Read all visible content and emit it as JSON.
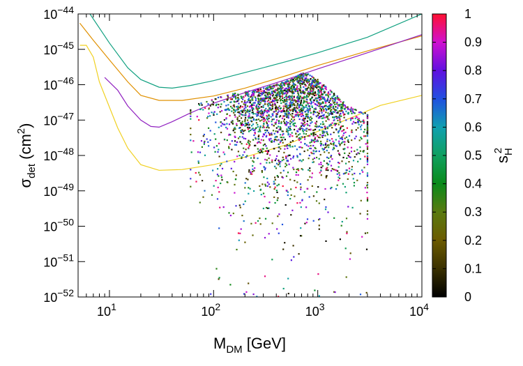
{
  "chart_data": {
    "type": "scatter",
    "title": "",
    "xlabel": {
      "base": "M",
      "sub": "DM",
      "rest": " [GeV]"
    },
    "ylabel": {
      "sym": "σ",
      "sub": "det",
      "pre": " (cm",
      "sup": "2",
      "post": ")"
    },
    "x_scale": "log",
    "y_scale": "log",
    "xlim": [
      5,
      10000
    ],
    "ylim": [
      1e-52,
      1e-44
    ],
    "x_ticks": [
      {
        "value": 10,
        "base": "10",
        "exp": "1"
      },
      {
        "value": 100,
        "base": "10",
        "exp": "2"
      },
      {
        "value": 1000,
        "base": "10",
        "exp": "3"
      },
      {
        "value": 10000,
        "base": "10",
        "exp": "4"
      }
    ],
    "y_ticks": [
      {
        "value": 1e-44,
        "base": "10",
        "exp": "−44"
      },
      {
        "value": 1e-45,
        "base": "10",
        "exp": "−45"
      },
      {
        "value": 1e-46,
        "base": "10",
        "exp": "−46"
      },
      {
        "value": 1e-47,
        "base": "10",
        "exp": "−47"
      },
      {
        "value": 1e-48,
        "base": "10",
        "exp": "−48"
      },
      {
        "value": 1e-49,
        "base": "10",
        "exp": "−49"
      },
      {
        "value": 1e-50,
        "base": "10",
        "exp": "−50"
      },
      {
        "value": 1e-51,
        "base": "10",
        "exp": "−51"
      },
      {
        "value": 1e-52,
        "base": "10",
        "exp": "−52"
      }
    ],
    "colorbar": {
      "label": {
        "base": "s",
        "sub": "H",
        "sup": "2"
      },
      "range": [
        0,
        1
      ],
      "ticks": [
        "0",
        "0.1",
        "0.2",
        "0.3",
        "0.4",
        "0.5",
        "0.6",
        "0.7",
        "0.8",
        "0.9",
        "1"
      ],
      "palette": [
        "#000000",
        "#3a3000",
        "#6b5a00",
        "#5a7a10",
        "#0a8a1a",
        "#10a060",
        "#10a0b0",
        "#2050e0",
        "#6010e0",
        "#d010d0",
        "#ff1030"
      ]
    },
    "curves": [
      {
        "name": "limit-teal",
        "color": "#10a080",
        "points": [
          [
            6.5,
            1e-44
          ],
          [
            10,
            1.5e-45
          ],
          [
            15,
            3e-46
          ],
          [
            20,
            1.4e-46
          ],
          [
            30,
            8.5e-47
          ],
          [
            40,
            8e-47
          ],
          [
            60,
            9.5e-47
          ],
          [
            100,
            1.3e-46
          ],
          [
            200,
            2.2e-46
          ],
          [
            500,
            4.5e-46
          ],
          [
            1000,
            8e-46
          ],
          [
            3000,
            2.2e-45
          ],
          [
            10000,
            1e-44
          ]
        ]
      },
      {
        "name": "limit-orange",
        "color": "#e09000",
        "points": [
          [
            5.2,
            5.5e-45
          ],
          [
            7,
            1.8e-45
          ],
          [
            10,
            5e-46
          ],
          [
            15,
            1.2e-46
          ],
          [
            20,
            5e-47
          ],
          [
            30,
            3.6e-47
          ],
          [
            50,
            3.6e-47
          ],
          [
            100,
            4.8e-47
          ],
          [
            200,
            8e-47
          ],
          [
            500,
            1.8e-46
          ],
          [
            1000,
            3.5e-46
          ],
          [
            3000,
            9e-46
          ],
          [
            10000,
            2.4e-45
          ]
        ]
      },
      {
        "name": "limit-purple",
        "color": "#9020c0",
        "points": [
          [
            9,
            1.6e-46
          ],
          [
            12,
            7e-47
          ],
          [
            15,
            2.5e-47
          ],
          [
            20,
            1e-47
          ],
          [
            25,
            6.6e-48
          ],
          [
            30,
            6.3e-48
          ],
          [
            40,
            9e-48
          ],
          [
            60,
            1.6e-47
          ],
          [
            100,
            3e-47
          ],
          [
            200,
            6e-47
          ],
          [
            500,
            1.4e-46
          ],
          [
            1000,
            2.8e-46
          ],
          [
            3000,
            8e-46
          ],
          [
            10000,
            2.6e-45
          ]
        ]
      },
      {
        "name": "limit-yellow",
        "color": "#f0d020",
        "points": [
          [
            5.2,
            1.3e-45
          ],
          [
            6,
            1.3e-45
          ],
          [
            7,
            6e-46
          ],
          [
            8,
            1.2e-46
          ],
          [
            10,
            2.3e-47
          ],
          [
            12,
            6e-48
          ],
          [
            15,
            1.6e-48
          ],
          [
            20,
            5.5e-49
          ],
          [
            30,
            3.8e-49
          ],
          [
            50,
            4e-49
          ],
          [
            100,
            5.5e-49
          ],
          [
            200,
            9e-49
          ],
          [
            500,
            2e-48
          ],
          [
            1000,
            4.8e-48
          ],
          [
            2000,
            1.1e-47
          ],
          [
            4000,
            2.6e-47
          ],
          [
            10000,
            5e-47
          ]
        ]
      }
    ],
    "scatter": {
      "n_points": 2600,
      "x_range": [
        60,
        3000
      ],
      "upper_envelope": [
        [
          60,
          3e-47
        ],
        [
          150,
          5.5e-47
        ],
        [
          300,
          8e-47
        ],
        [
          500,
          1.3e-46
        ],
        [
          750,
          2.3e-46
        ],
        [
          1000,
          1.4e-46
        ],
        [
          2000,
          2.5e-47
        ],
        [
          3000,
          1.5e-47
        ]
      ],
      "lower_bound_y": 1e-52,
      "color_variable": "s_H^2 uniform in [0, 1]"
    }
  }
}
